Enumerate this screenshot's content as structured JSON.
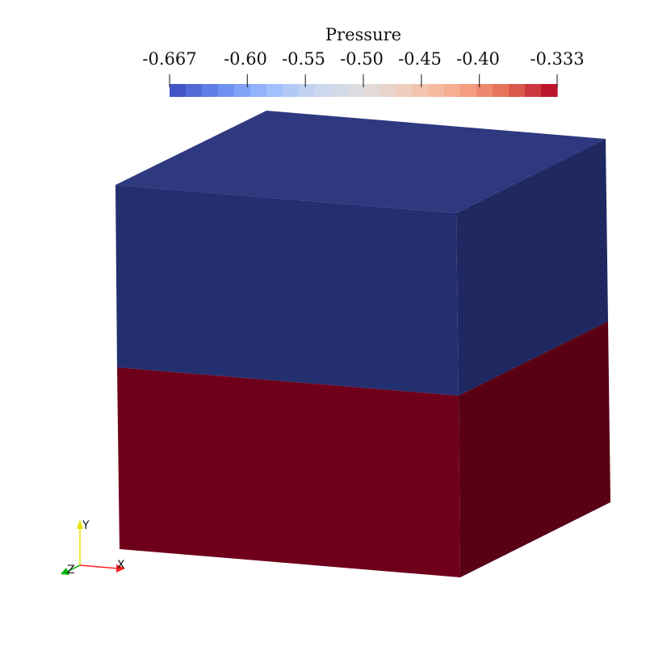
{
  "colorbar": {
    "title": "Pressure",
    "range": [
      -0.667,
      -0.333
    ],
    "tick_labels": [
      "-0.667",
      "-0.60",
      "-0.55",
      "-0.50",
      "-0.45",
      "-0.40",
      "-0.333"
    ],
    "tick_values": [
      -0.667,
      -0.6,
      -0.55,
      -0.5,
      -0.45,
      -0.4,
      -0.333
    ],
    "num_bands": 24,
    "colormap_stops": [
      "#3b4cc0",
      "#6788ee",
      "#9abbff",
      "#c9d7f0",
      "#dddddd",
      "#f2cbb7",
      "#f7a889",
      "#e26952",
      "#b40426"
    ]
  },
  "scene": {
    "object": "cube",
    "upper_half_color": "#242f70",
    "lower_half_color": "#6e001b"
  },
  "orientation_axes": {
    "x_label": "X",
    "y_label": "Y",
    "z_label": "Z",
    "x_color": "#ff2020",
    "y_color": "#e6e600",
    "z_color": "#00b000"
  }
}
